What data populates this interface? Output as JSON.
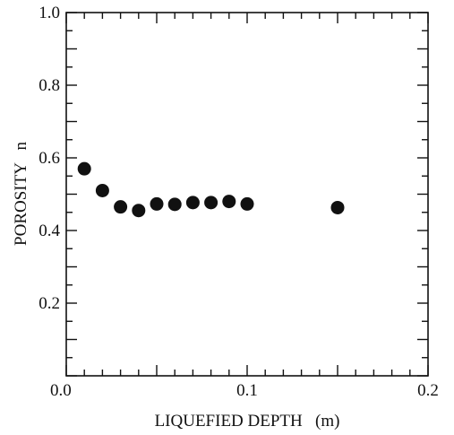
{
  "chart_data": {
    "type": "scatter",
    "title": "",
    "xlabel": "LIQUEFIED DEPTH   (m)",
    "ylabel": "POROSITY   n",
    "xlim": [
      0.0,
      0.2
    ],
    "ylim": [
      0.0,
      1.0
    ],
    "x_ticks": [
      "0.0",
      "0.1",
      "0.2"
    ],
    "y_ticks": [
      "0.2",
      "0.4",
      "0.6",
      "0.8",
      "1.0"
    ],
    "grid": false,
    "series": [
      {
        "x": [
          0.01,
          0.02,
          0.03,
          0.04,
          0.05,
          0.06,
          0.07,
          0.08,
          0.09,
          0.1,
          0.15
        ],
        "y": [
          0.57,
          0.51,
          0.465,
          0.455,
          0.473,
          0.472,
          0.477,
          0.477,
          0.48,
          0.473,
          0.463
        ]
      }
    ],
    "marker_color": "#111111"
  }
}
